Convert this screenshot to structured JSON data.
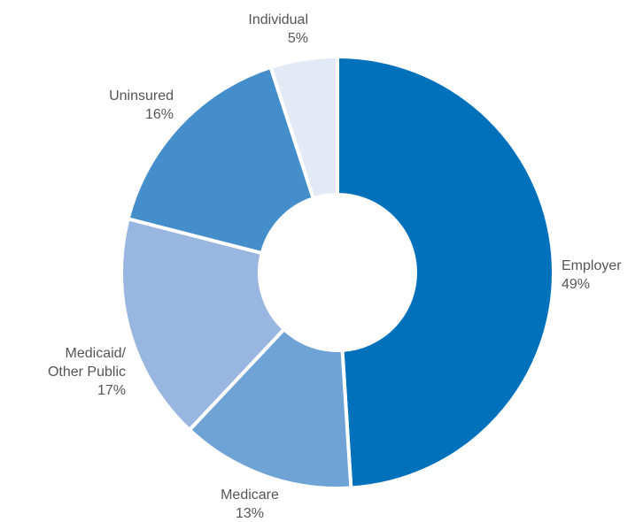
{
  "chart_data": {
    "type": "pie",
    "variant": "donut",
    "title": "",
    "start_angle_deg": 0,
    "direction": "clockwise",
    "slices": [
      {
        "label": [
          "Employer"
        ],
        "value": 49,
        "value_label": "49%",
        "color": "#0271bc"
      },
      {
        "label": [
          "Medicare"
        ],
        "value": 13,
        "value_label": "13%",
        "color": "#6fa3d6"
      },
      {
        "label": [
          "Medicaid/",
          "Other Public"
        ],
        "value": 17,
        "value_label": "17%",
        "color": "#98b6df"
      },
      {
        "label": [
          "Uninsured"
        ],
        "value": 16,
        "value_label": "16%",
        "color": "#448ecc"
      },
      {
        "label": [
          "Individual"
        ],
        "value": 5,
        "value_label": "5%",
        "color": "#e3eaf6"
      }
    ]
  }
}
